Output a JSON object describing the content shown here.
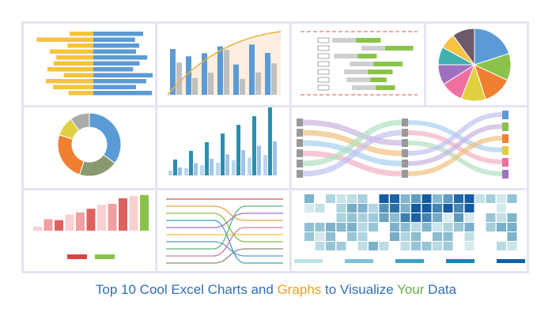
{
  "title": {
    "parts": [
      "Top 10 Cool Excel Charts and ",
      "Graphs",
      " to Visualize ",
      "Your",
      " Data"
    ]
  }
}
